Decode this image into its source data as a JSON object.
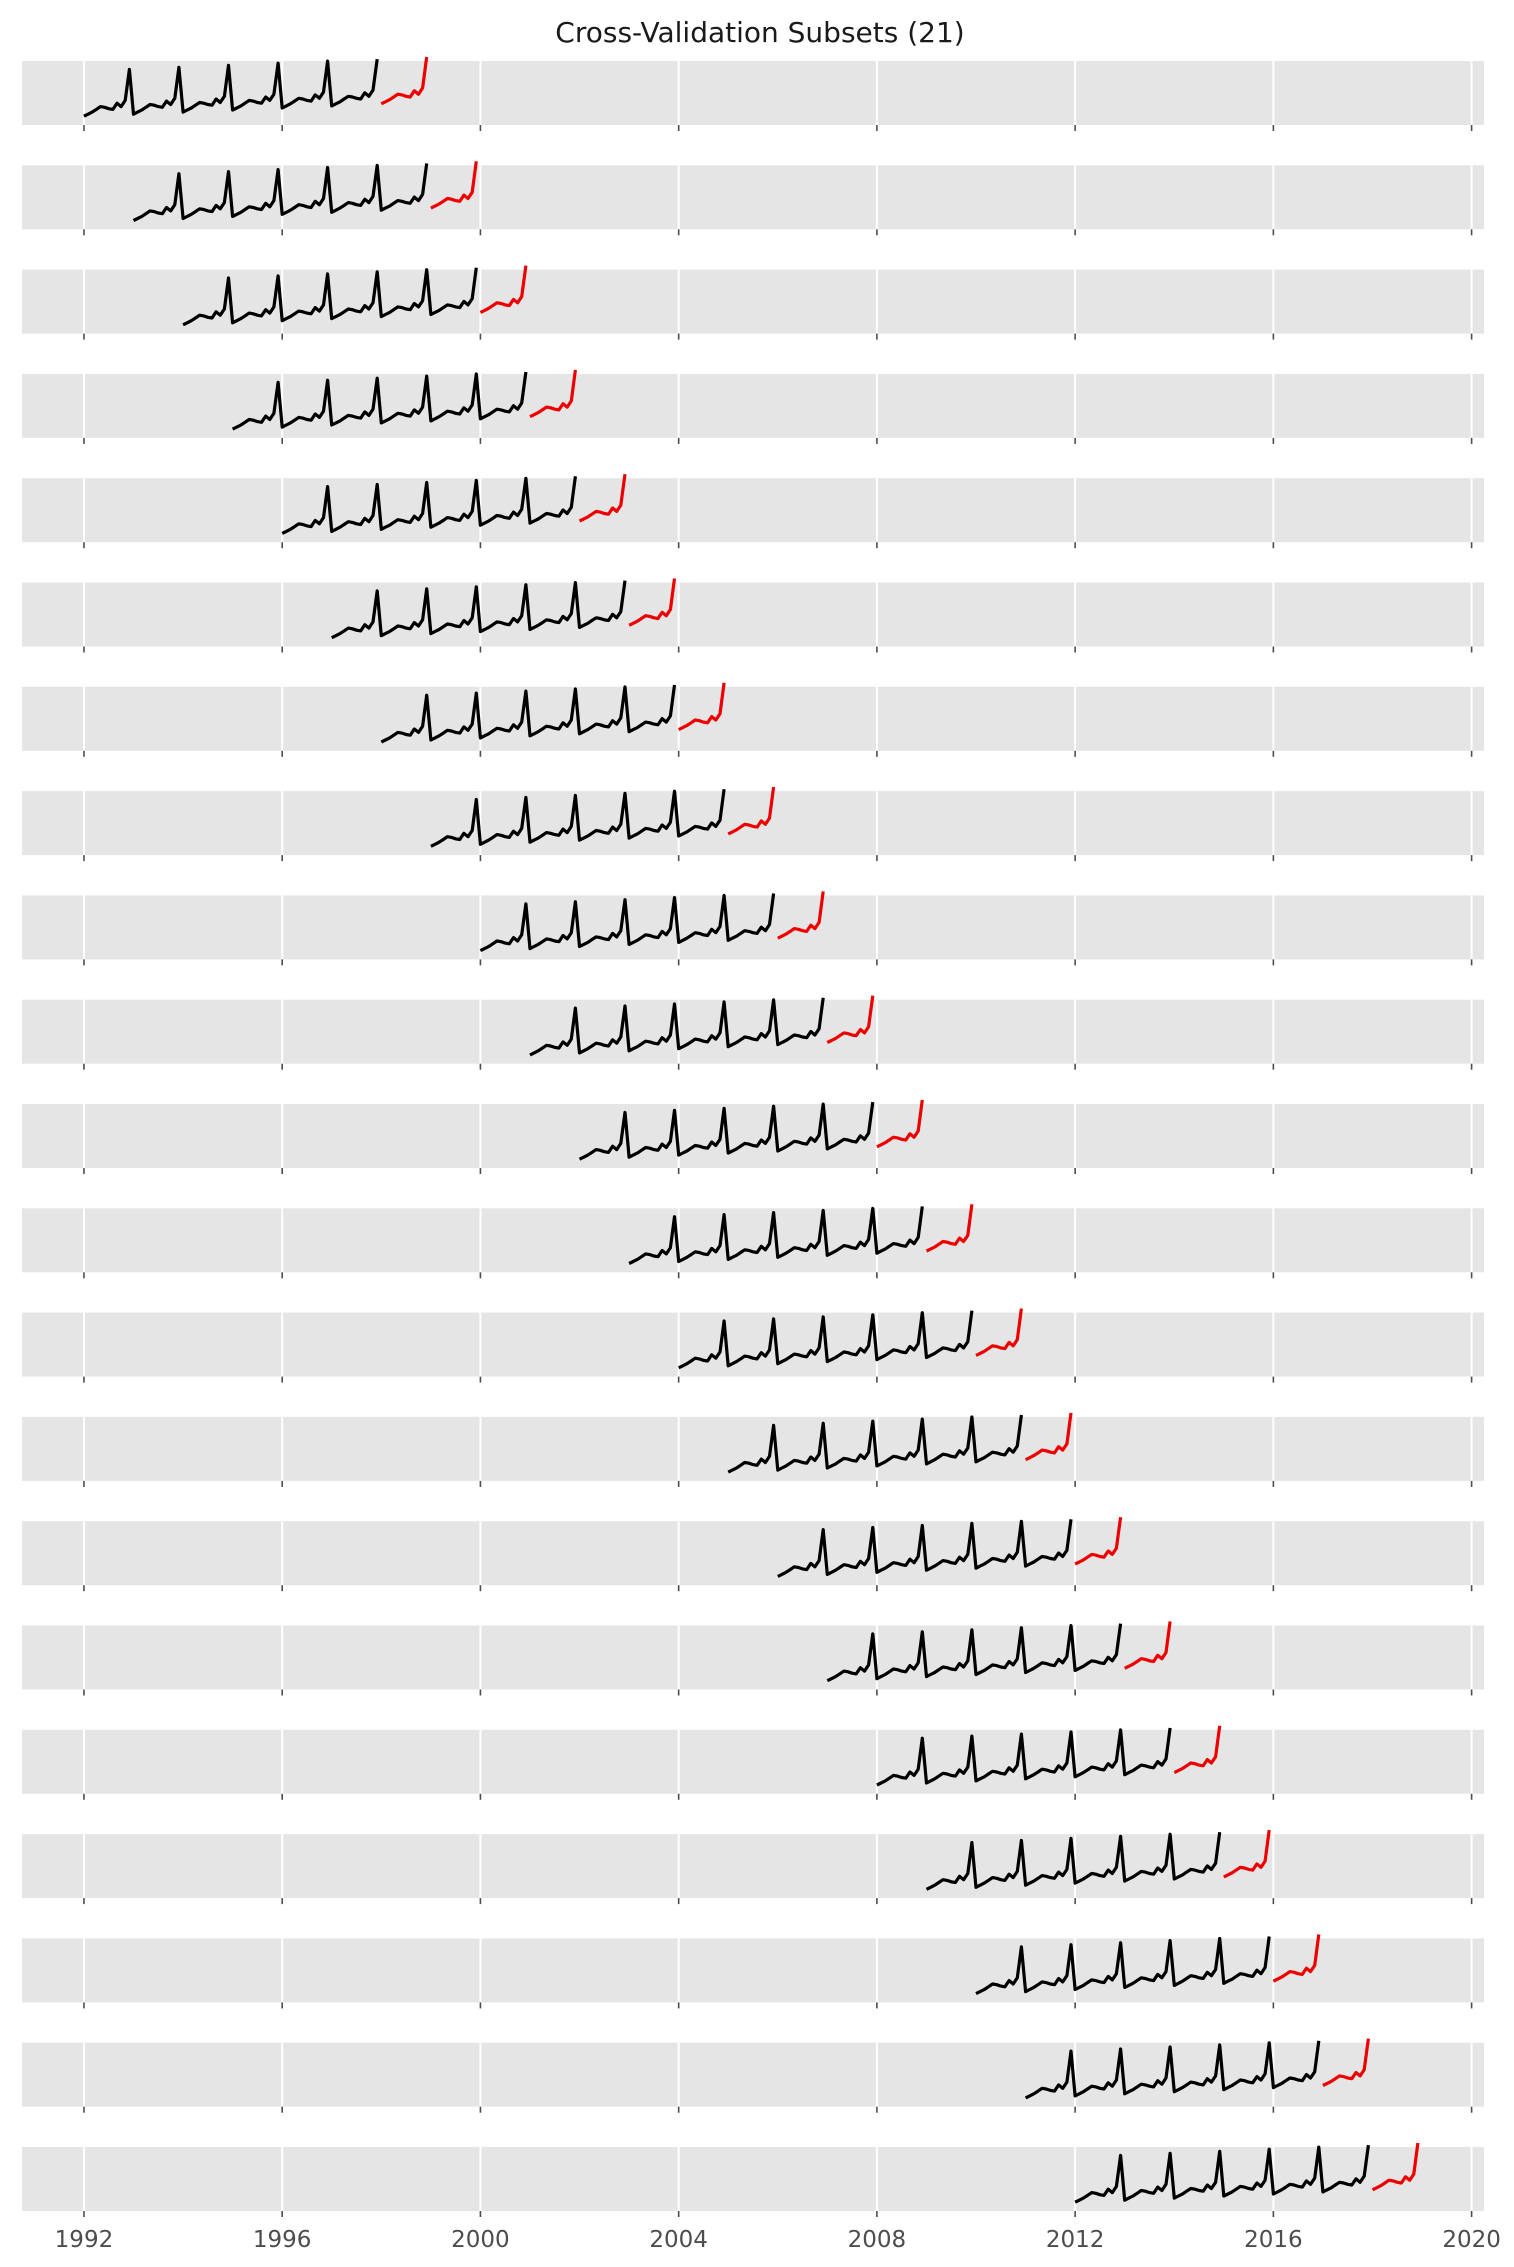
{
  "chart_data": {
    "type": "line",
    "title": "Cross-Validation Subsets (21)",
    "xlabel": "",
    "ylabel": "",
    "xlim": [
      1990.75,
      2020.25
    ],
    "x_ticks": [
      "1992",
      "1996",
      "2000",
      "2004",
      "2008",
      "2012",
      "2016",
      "2020"
    ],
    "x_tick_values": [
      1992,
      1996,
      2000,
      2004,
      2008,
      2012,
      2016,
      2020
    ],
    "grid": true,
    "panel_count": 21,
    "train_years": 6,
    "test_years": 1,
    "first_train_start": 1992,
    "series_colors": {
      "train": "#000000",
      "test": "#ee0000"
    },
    "background": "#e5e5e5",
    "seasonal_profile": [
      0.04,
      0.07,
      0.1,
      0.14,
      0.15,
      0.17,
      0.15,
      0.14,
      0.2,
      0.18,
      0.27,
      0.72
    ],
    "yearly_trend": 0.03,
    "panels": [
      {
        "train": [
          1992,
          1998
        ],
        "test": [
          1998,
          1999
        ]
      },
      {
        "train": [
          1993,
          1999
        ],
        "test": [
          1999,
          2000
        ]
      },
      {
        "train": [
          1994,
          2000
        ],
        "test": [
          2000,
          2001
        ]
      },
      {
        "train": [
          1995,
          2001
        ],
        "test": [
          2001,
          2002
        ]
      },
      {
        "train": [
          1996,
          2002
        ],
        "test": [
          2002,
          2003
        ]
      },
      {
        "train": [
          1997,
          2003
        ],
        "test": [
          2003,
          2004
        ]
      },
      {
        "train": [
          1998,
          2004
        ],
        "test": [
          2004,
          2005
        ]
      },
      {
        "train": [
          1999,
          2005
        ],
        "test": [
          2005,
          2006
        ]
      },
      {
        "train": [
          2000,
          2006
        ],
        "test": [
          2006,
          2007
        ]
      },
      {
        "train": [
          2001,
          2007
        ],
        "test": [
          2007,
          2008
        ]
      },
      {
        "train": [
          2002,
          2008
        ],
        "test": [
          2008,
          2009
        ]
      },
      {
        "train": [
          2003,
          2009
        ],
        "test": [
          2009,
          2010
        ]
      },
      {
        "train": [
          2004,
          2010
        ],
        "test": [
          2010,
          2011
        ]
      },
      {
        "train": [
          2005,
          2011
        ],
        "test": [
          2011,
          2012
        ]
      },
      {
        "train": [
          2006,
          2012
        ],
        "test": [
          2012,
          2013
        ]
      },
      {
        "train": [
          2007,
          2013
        ],
        "test": [
          2013,
          2014
        ]
      },
      {
        "train": [
          2008,
          2014
        ],
        "test": [
          2014,
          2015
        ]
      },
      {
        "train": [
          2009,
          2015
        ],
        "test": [
          2015,
          2016
        ]
      },
      {
        "train": [
          2010,
          2016
        ],
        "test": [
          2016,
          2017
        ]
      },
      {
        "train": [
          2011,
          2017
        ],
        "test": [
          2017,
          2018
        ]
      },
      {
        "train": [
          2012,
          2018
        ],
        "test": [
          2018,
          2019
        ]
      }
    ]
  }
}
